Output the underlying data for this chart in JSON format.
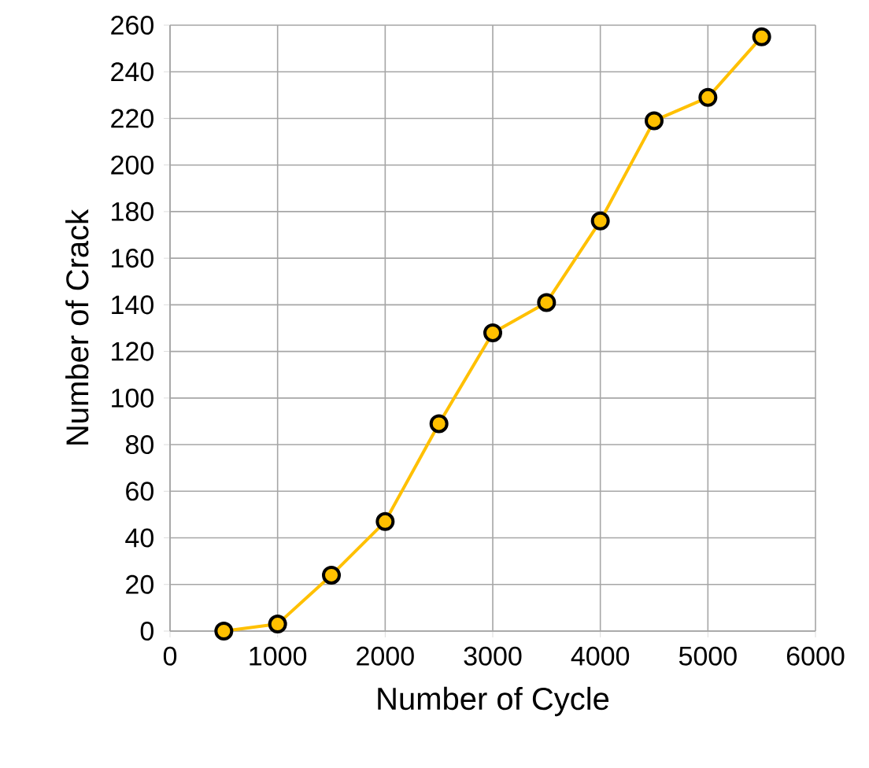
{
  "chart_data": {
    "type": "line",
    "xlabel": "Number of Cycle",
    "ylabel": "Number of Crack",
    "x": [
      500,
      1000,
      1500,
      2000,
      2500,
      3000,
      3500,
      4000,
      4500,
      5000,
      5500
    ],
    "series": [
      {
        "color": "#ffc000",
        "values": [
          0,
          3,
          24,
          47,
          89,
          128,
          141,
          176,
          219,
          229,
          255
        ]
      }
    ],
    "xlim": [
      0,
      6000
    ],
    "xticks": [
      0,
      1000,
      2000,
      3000,
      4000,
      5000,
      6000
    ],
    "ylim": [
      0,
      260
    ],
    "yticks": [
      0,
      20,
      40,
      60,
      80,
      100,
      120,
      140,
      160,
      180,
      200,
      220,
      240,
      260
    ],
    "grid": true,
    "marker": "circle",
    "line_style": "solid"
  }
}
